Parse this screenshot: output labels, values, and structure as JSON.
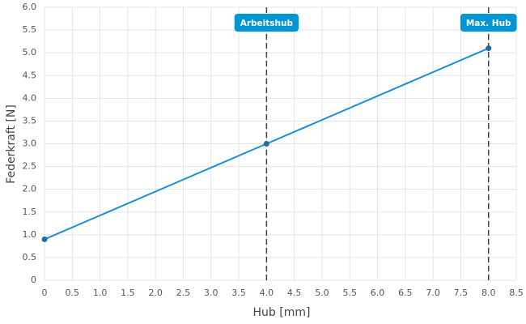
{
  "chart_data": {
    "type": "line",
    "x_label": "Hub [mm]",
    "y_label": "Federkraft [N]",
    "x": [
      0,
      4,
      8
    ],
    "series": [
      {
        "name": "Federkraft",
        "color": "#1a8fd1",
        "marker_color": "#1c6fa6",
        "values": [
          0.9,
          3.0,
          5.1
        ]
      }
    ],
    "xlim": [
      0,
      8.5
    ],
    "ylim": [
      0,
      6
    ],
    "xticks": [
      0,
      0.5,
      {
        "value": 1,
        "label": "1.0"
      },
      1.5,
      {
        "value": 2,
        "label": "2.0"
      },
      2.5,
      {
        "value": 3,
        "label": "3.0"
      },
      3.5,
      {
        "value": 4,
        "label": "4.0"
      },
      4.5,
      {
        "value": 5,
        "label": "5.0"
      },
      5.5,
      {
        "value": 6,
        "label": "6.0"
      },
      6.5,
      {
        "value": 7,
        "label": "7.0"
      },
      7.5,
      {
        "value": 8,
        "label": "8.0"
      },
      8.5
    ],
    "yticks": [
      0,
      0.5,
      {
        "value": 1,
        "label": "1.0"
      },
      1.5,
      {
        "value": 2,
        "label": "2.0"
      },
      2.5,
      {
        "value": 3,
        "label": "3.0"
      },
      3.5,
      {
        "value": 4,
        "label": "4.0"
      },
      4.5,
      {
        "value": 5,
        "label": "5.0"
      },
      5.5,
      {
        "value": 6,
        "label": "6.0"
      }
    ],
    "grid": true,
    "annotations": [
      {
        "x": 4,
        "label": "Arbeitshub",
        "color": "#0096d6"
      },
      {
        "x": 8,
        "label": "Max. Hub",
        "color": "#0096d6"
      }
    ]
  }
}
